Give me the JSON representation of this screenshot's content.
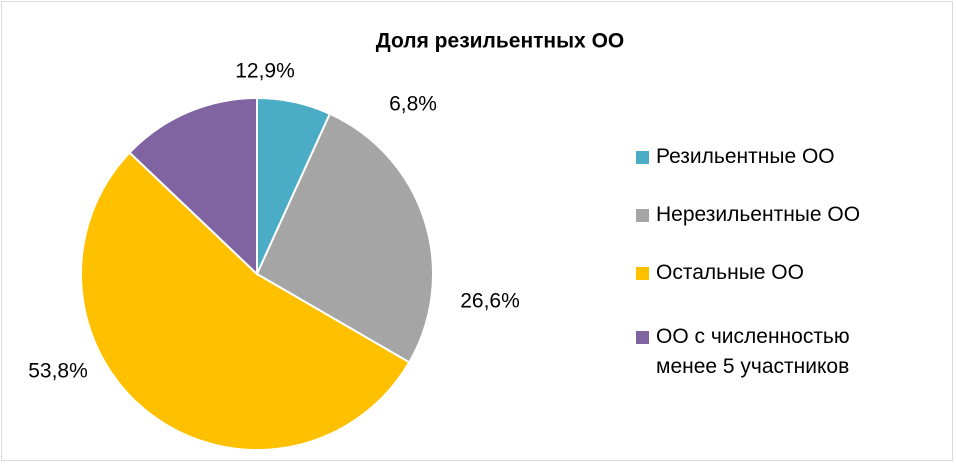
{
  "chart_data": {
    "type": "pie",
    "title": "Доля резильентных ОО",
    "categories": [
      "Резильентные ОО",
      "Нерезильентные ОО",
      "Остальные ОО",
      "ОО с численностью менее 5 участников"
    ],
    "values": [
      6.8,
      26.6,
      53.8,
      12.9
    ],
    "value_labels": [
      "6,8%",
      "26,6%",
      "53,8%",
      "12,9%"
    ],
    "colors": [
      "#4bacc6",
      "#a5a5a5",
      "#ffc000",
      "#8064a2"
    ],
    "legend": "right"
  }
}
